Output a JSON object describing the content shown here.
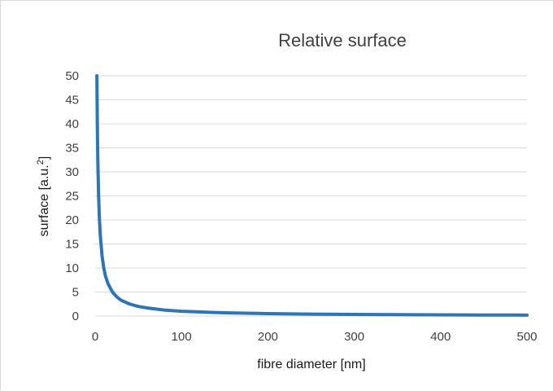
{
  "chart_data": {
    "type": "line",
    "title": "Relative surface",
    "xlabel": "fibre diameter [nm]",
    "ylabel_main": "surface [a.u.",
    "ylabel_sup": "2",
    "ylabel_end": "]",
    "xlim": [
      0,
      500
    ],
    "ylim": [
      0,
      50
    ],
    "x_ticks": [
      0,
      100,
      200,
      300,
      400,
      500
    ],
    "y_ticks": [
      0,
      5,
      10,
      15,
      20,
      25,
      30,
      35,
      40,
      45,
      50
    ],
    "grid": "horizontal",
    "legend": "none",
    "series": [
      {
        "color": "#2e75b6",
        "x": [
          2,
          2.5,
          3,
          4,
          5,
          6,
          8,
          10,
          12,
          15,
          20,
          25,
          30,
          40,
          50,
          60,
          80,
          100,
          150,
          200,
          250,
          300,
          350,
          400,
          450,
          500
        ],
        "y": [
          50,
          40,
          33.3,
          25,
          20,
          16.7,
          12.5,
          10,
          8.3,
          6.7,
          5,
          4,
          3.3,
          2.5,
          2,
          1.7,
          1.25,
          1,
          0.67,
          0.5,
          0.4,
          0.33,
          0.29,
          0.25,
          0.22,
          0.2
        ]
      }
    ]
  }
}
